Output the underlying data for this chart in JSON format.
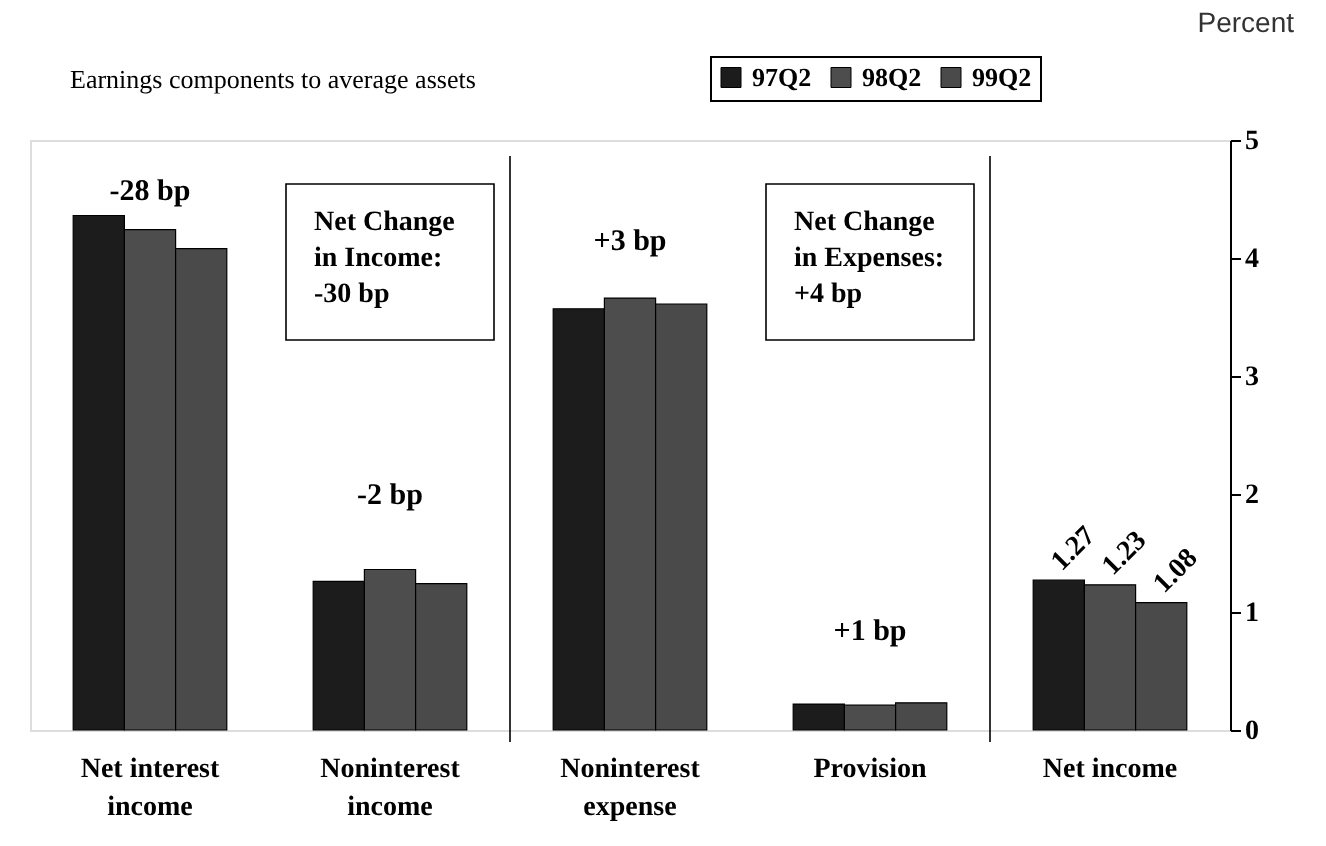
{
  "chart_data": {
    "type": "bar",
    "title": "Earnings components to average assets",
    "ylabel": "Percent",
    "categories": [
      "Net interest income",
      "Noninterest income",
      "Noninterest expense",
      "Provision",
      "Net income"
    ],
    "series": [
      {
        "name": "97Q2",
        "color": "#1c1c1c",
        "values": [
          4.36,
          1.26,
          3.57,
          0.22,
          1.27
        ],
        "value_labels": [
          null,
          null,
          null,
          null,
          "1.27"
        ]
      },
      {
        "name": "98Q2",
        "color": "#4d4d4d",
        "values": [
          4.24,
          1.36,
          3.66,
          0.21,
          1.23
        ],
        "value_labels": [
          null,
          null,
          null,
          null,
          "1.23"
        ]
      },
      {
        "name": "99Q2",
        "color": "#4a4a4a",
        "values": [
          4.08,
          1.24,
          3.61,
          0.23,
          1.08
        ],
        "value_labels": [
          null,
          null,
          null,
          null,
          "1.08"
        ]
      }
    ],
    "ylim": [
      0,
      5
    ],
    "yticks": [
      0,
      1,
      2,
      3,
      4,
      5
    ],
    "grid": false,
    "legend": "top",
    "annotations": [
      "-28 bp",
      "-2 bp",
      "+3 bp",
      "+1  bp",
      "Net Change\nin Income:\n-30 bp",
      "Net Change\nin Expenses:\n+4 bp"
    ]
  }
}
